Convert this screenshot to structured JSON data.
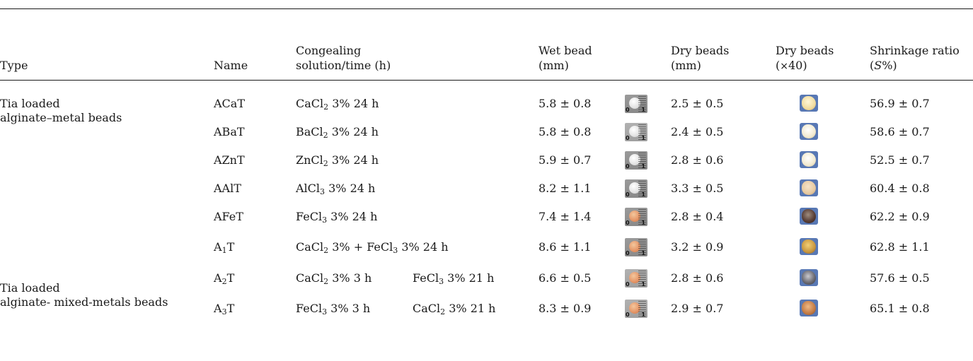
{
  "headers": {
    "type": "Type",
    "name": "Name",
    "congealing_1": "Congealing",
    "congealing_2": "solution/time (h)",
    "wet_1": "Wet bead",
    "wet_2": "(mm)",
    "dry_1": "Dry beads",
    "dry_2": "(mm)",
    "dry40_1": "Dry beads",
    "dry40_2_open": "(",
    "dry40_2_sym": "×",
    "dry40_2_rest": "40)",
    "shrink_1": "Shrinkage ratio",
    "shrink_2_open": "(",
    "shrink_2_s": "S",
    "shrink_2_rest": "%)"
  },
  "groups": [
    {
      "line1": "Tia loaded",
      "line2": "alginate–metal beads"
    },
    {
      "line1": "Tia loaded",
      "line2": "alginate- mixed-metals beads"
    }
  ],
  "rows": [
    {
      "name": "ACaT",
      "sol_a": "CaCl",
      "sol_a_sub": "2",
      "sol_a_rest": " 3% 24 h",
      "wet": "5.8 ± 0.8",
      "dry": "2.5 ± 0.5",
      "shrink": "56.9 ± 0.7"
    },
    {
      "name": "ABaT",
      "sol_a": "BaCl",
      "sol_a_sub": "2",
      "sol_a_rest": " 3% 24 h",
      "wet": "5.8 ± 0.8",
      "dry": "2.4 ± 0.5",
      "shrink": "58.6 ± 0.7"
    },
    {
      "name": "AZnT",
      "sol_a": "ZnCl",
      "sol_a_sub": "2",
      "sol_a_rest": " 3% 24 h",
      "wet": "5.9 ± 0.7",
      "dry": "2.8 ± 0.6",
      "shrink": "52.5 ± 0.7"
    },
    {
      "name": "AAlT",
      "sol_a": "AlCl",
      "sol_a_sub": "3",
      "sol_a_rest": " 3% 24 h",
      "wet": "8.2 ± 1.1",
      "dry": "3.3 ± 0.5",
      "shrink": "60.4 ± 0.8"
    },
    {
      "name": "AFeT",
      "sol_a": "FeCl",
      "sol_a_sub": "3",
      "sol_a_rest": " 3% 24 h",
      "wet": "7.4 ± 1.4",
      "dry": "2.8 ± 0.4",
      "shrink": "62.2 ± 0.9"
    },
    {
      "name_main": "A",
      "name_sub": "1",
      "name_rest": "T",
      "sol_a": "CaCl",
      "sol_a_sub": "2",
      "sol_a_rest": " 3% + FeCl",
      "sol_a_sub2": "3",
      "sol_a_rest2": " 3% 24 h",
      "wet": "8.6 ± 1.1",
      "dry": "3.2 ± 0.9",
      "shrink": "62.8 ± 1.1"
    },
    {
      "name_main": "A",
      "name_sub": "2",
      "name_rest": "T",
      "sol_a": "CaCl",
      "sol_a_sub": "2",
      "sol_a_rest": " 3% 3 h",
      "sol_b": "FeCl",
      "sol_b_sub": "3",
      "sol_b_rest": " 3% 21 h",
      "wet": "6.6 ± 0.5",
      "dry": "2.8 ± 0.6",
      "shrink": "57.6 ± 0.5"
    },
    {
      "name_main": "A",
      "name_sub": "3",
      "name_rest": "T",
      "sol_a": "FeCl",
      "sol_a_sub": "3",
      "sol_a_rest": " 3% 3 h",
      "sol_b": "CaCl",
      "sol_b_sub": "2",
      "sol_b_rest": " 3% 21 h",
      "wet": "8.3 ± 0.9",
      "dry": "2.9 ± 0.7",
      "shrink": "65.1 ± 0.8"
    }
  ],
  "wet_scale_labels": {
    "zero": "0",
    "one": "1"
  }
}
